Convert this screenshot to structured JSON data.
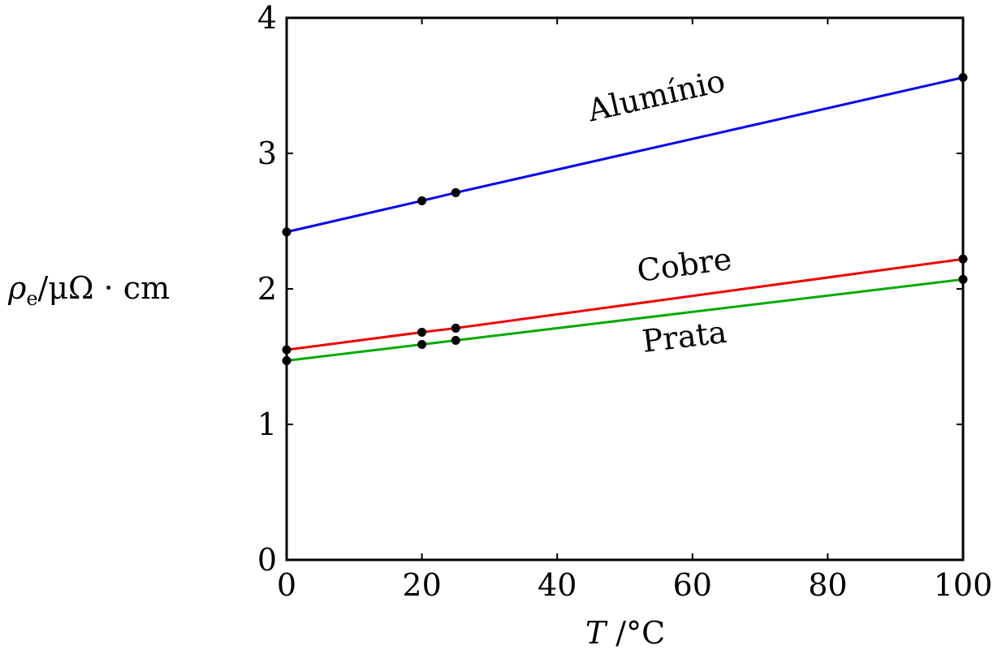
{
  "chart_data": {
    "type": "line",
    "xlabel": {
      "italic": "T",
      "rest": " /°C"
    },
    "ylabel": {
      "rho": "ρ",
      "sub": "e",
      "rest": "/μΩ · cm"
    },
    "xlim": [
      0,
      100
    ],
    "ylim": [
      0,
      4
    ],
    "xticks": [
      0,
      20,
      40,
      60,
      80,
      100
    ],
    "yticks": [
      0,
      1,
      2,
      3,
      4
    ],
    "grid": false,
    "series": [
      {
        "name": "Alumínio",
        "color": "#0000ee",
        "x": [
          0,
          20,
          25,
          100
        ],
        "y": [
          2.42,
          2.65,
          2.71,
          3.56
        ]
      },
      {
        "name": "Cobre",
        "color": "#ee0000",
        "x": [
          0,
          20,
          25,
          100
        ],
        "y": [
          1.55,
          1.68,
          1.71,
          2.22
        ]
      },
      {
        "name": "Prata",
        "color": "#00aa00",
        "x": [
          0,
          20,
          25,
          100
        ],
        "y": [
          1.47,
          1.59,
          1.62,
          2.07
        ]
      }
    ]
  }
}
